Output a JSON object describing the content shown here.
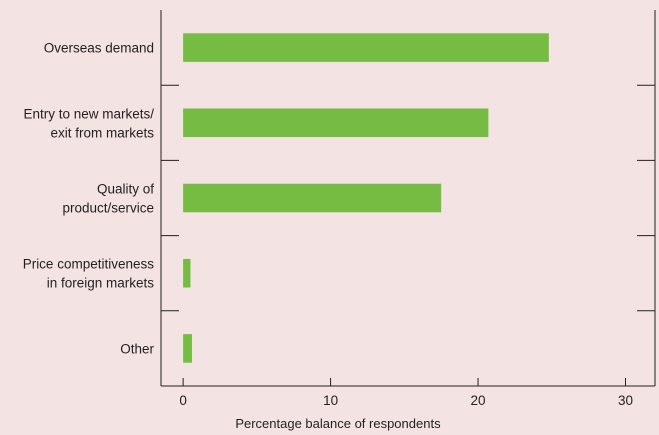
{
  "chart_data": {
    "type": "bar",
    "orientation": "horizontal",
    "categories": [
      [
        "Overseas demand"
      ],
      [
        "Entry to new markets/",
        "exit from markets"
      ],
      [
        "Quality of",
        "product/service"
      ],
      [
        "Price competitiveness",
        "in foreign markets"
      ],
      [
        "Other"
      ]
    ],
    "values": [
      24.8,
      20.7,
      17.5,
      0.5,
      0.6
    ],
    "xlabel": "Percentage balance of respondents",
    "xlim": [
      -1.5,
      32
    ],
    "xticks": [
      0,
      10,
      20,
      30
    ],
    "grid": false,
    "colors": {
      "bar": "#76bc43",
      "background": "#f3e3e2",
      "axis": "#231f20"
    }
  }
}
